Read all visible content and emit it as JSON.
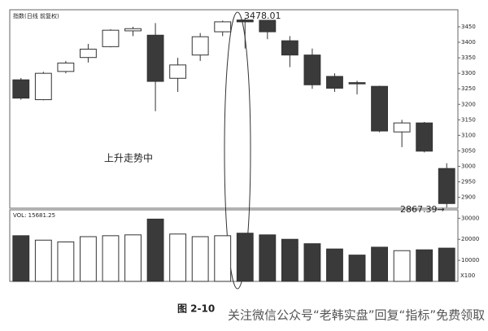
{
  "chart_data": {
    "type": "candlestick",
    "title": "指数(日线 前复权)",
    "open": [
      3279,
      3215,
      3306,
      3351,
      3386,
      3437,
      3423,
      3284,
      3359,
      3434,
      3472,
      3471,
      3405,
      3359,
      3290,
      3270,
      3258,
      3111,
      3140,
      2993
    ],
    "high": [
      3285,
      3305,
      3340,
      3395,
      3442,
      3450,
      3462,
      3350,
      3430,
      3470,
      3478.01,
      3472,
      3420,
      3380,
      3300,
      3276,
      3260,
      3150,
      3143,
      3010
    ],
    "low": [
      3215,
      3213,
      3300,
      3335,
      3384,
      3420,
      3178,
      3240,
      3340,
      3420,
      3380,
      3410,
      3320,
      3250,
      3240,
      3232,
      3110,
      3062,
      3045,
      2867.39
    ],
    "close": [
      3220,
      3300,
      3333,
      3378,
      3439,
      3444,
      3274,
      3327,
      3418,
      3466,
      3466,
      3434,
      3359,
      3263,
      3252,
      3266,
      3114,
      3140,
      3049,
      2880
    ],
    "up_color": "#ffffff",
    "down_color": "#3a3a3a",
    "ylim": [
      2865,
      3505
    ],
    "yticks": [
      2900,
      2950,
      3000,
      3050,
      3100,
      3150,
      3200,
      3250,
      3300,
      3350,
      3400,
      3450
    ],
    "annotations": [
      {
        "text": "3478.01"
      },
      {
        "text": "2867.39→"
      },
      {
        "text": "上升走势中"
      }
    ],
    "volume": {
      "title": "VOL: 15681.25",
      "unit_label": "X100",
      "values": [
        21700,
        19600,
        18750,
        21250,
        21700,
        22100,
        29600,
        22500,
        21250,
        21700,
        22900,
        22100,
        20000,
        17900,
        15400,
        12500,
        16250,
        14600,
        15000,
        15800
      ],
      "ylim": [
        0,
        34000
      ],
      "yticks": [
        10000,
        20000,
        30000
      ]
    },
    "caption": "图 2-10",
    "watermark": "关注微信公众号“老韩实盘”回复“指标”免费领取"
  }
}
